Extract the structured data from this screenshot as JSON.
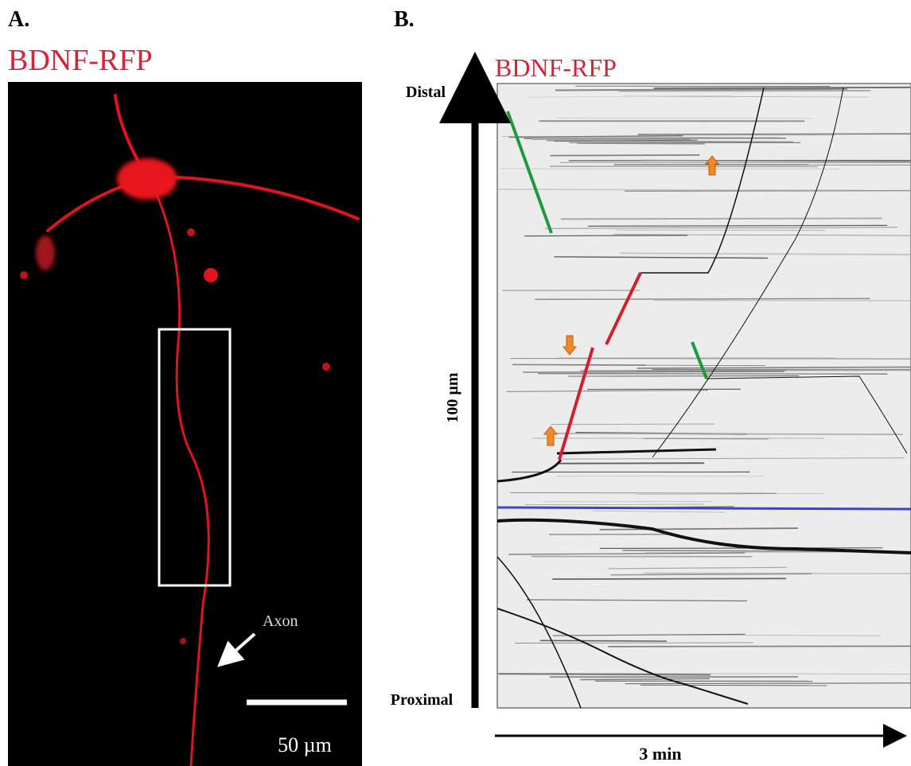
{
  "panels": [
    {
      "label": "A.",
      "title": "BDNF-RFP",
      "annotation": "Axon",
      "scale_bar": "50 µm"
    },
    {
      "label": "B.",
      "title": "BDNF-RFP",
      "top_label": "Distal",
      "bottom_label": "Proximal",
      "y_axis_label": "100 µm",
      "x_axis_label": "3 min"
    }
  ]
}
